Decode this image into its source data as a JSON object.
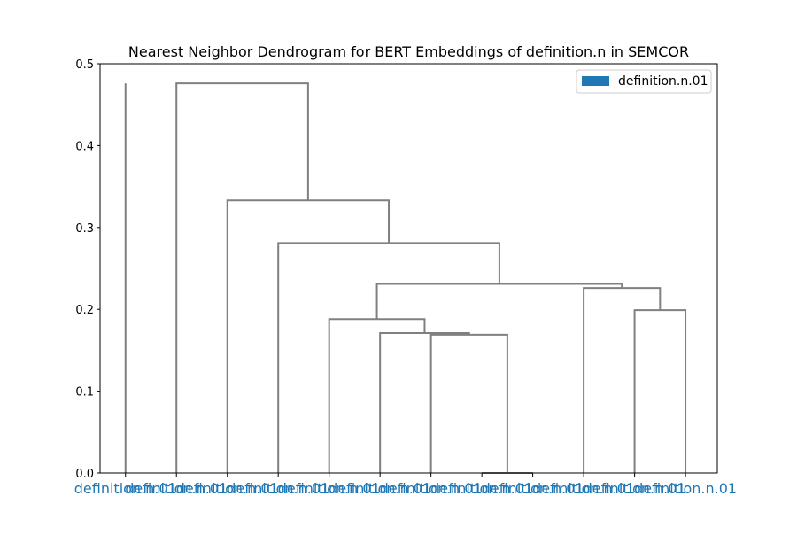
{
  "chart_data": {
    "type": "dendrogram",
    "title": "Nearest Neighbor Dendrogram for BERT Embeddings of definition.n in SEMCOR",
    "xlabel": "",
    "ylabel": "",
    "ylim": [
      0,
      0.5
    ],
    "yticks": [
      0.0,
      0.1,
      0.2,
      0.3,
      0.4,
      0.5
    ],
    "ytick_labels": [
      "0.0",
      "0.1",
      "0.2",
      "0.3",
      "0.4",
      "0.5"
    ],
    "grid": false,
    "legend": {
      "placement": "top-right",
      "entries": [
        {
          "label": "definition.n.01",
          "color": "#1f77b4"
        }
      ]
    },
    "leaf_color": "#1f77b4",
    "link_color": "#808080",
    "leaves": [
      "definition.n.01",
      "definition.n.01",
      "definition.n.01",
      "definition.n.01",
      "definition.n.01",
      "definition.n.01",
      "definition.n.01",
      "definition.n.01",
      "definition.n.01",
      "definition.n.01",
      "definition.n.01",
      "definition.n.01"
    ],
    "merges": [
      {
        "left": 7,
        "right": 8,
        "height": 0.0
      },
      {
        "left": 6,
        "right": 12,
        "height": 0.169
      },
      {
        "left": 5,
        "right": 13,
        "height": 0.171
      },
      {
        "left": 4,
        "right": 14,
        "height": 0.188
      },
      {
        "left": 10,
        "right": 11,
        "height": 0.199
      },
      {
        "left": 9,
        "right": 16,
        "height": 0.226
      },
      {
        "left": 15,
        "right": 17,
        "height": 0.231
      },
      {
        "left": 3,
        "right": 18,
        "height": 0.281
      },
      {
        "left": 2,
        "right": 19,
        "height": 0.333
      },
      {
        "left": 1,
        "right": 20,
        "height": 0.476
      }
    ],
    "unlinked_leaves": [
      0
    ]
  }
}
